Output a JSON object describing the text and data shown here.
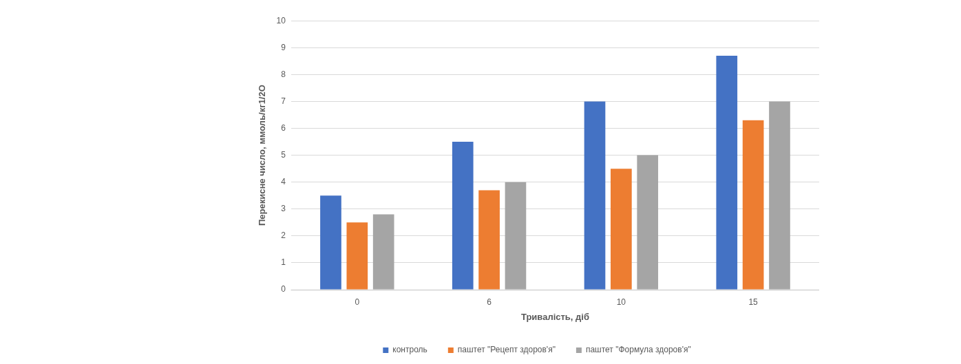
{
  "chart_data": {
    "type": "bar",
    "xlabel": "Тривалість, діб",
    "ylabel": "Перекисне число, ммоль/кг1/2О",
    "categories": [
      "0",
      "6",
      "10",
      "15"
    ],
    "series": [
      {
        "name": "контроль",
        "color": "#4472c4",
        "values": [
          3.5,
          5.5,
          7.0,
          8.7
        ]
      },
      {
        "name": "паштет \"Рецепт здоров'я\"",
        "color": "#ed7d31",
        "values": [
          2.5,
          3.7,
          4.5,
          6.3
        ]
      },
      {
        "name": "паштет \"Формула здоров'я\"",
        "color": "#a5a5a5",
        "values": [
          2.8,
          4.0,
          5.0,
          7.0
        ]
      }
    ],
    "ylim": [
      0,
      10
    ],
    "yticks": [
      0,
      1,
      2,
      3,
      4,
      5,
      6,
      7,
      8,
      9,
      10
    ],
    "grid": "y",
    "legend": "bottom"
  }
}
